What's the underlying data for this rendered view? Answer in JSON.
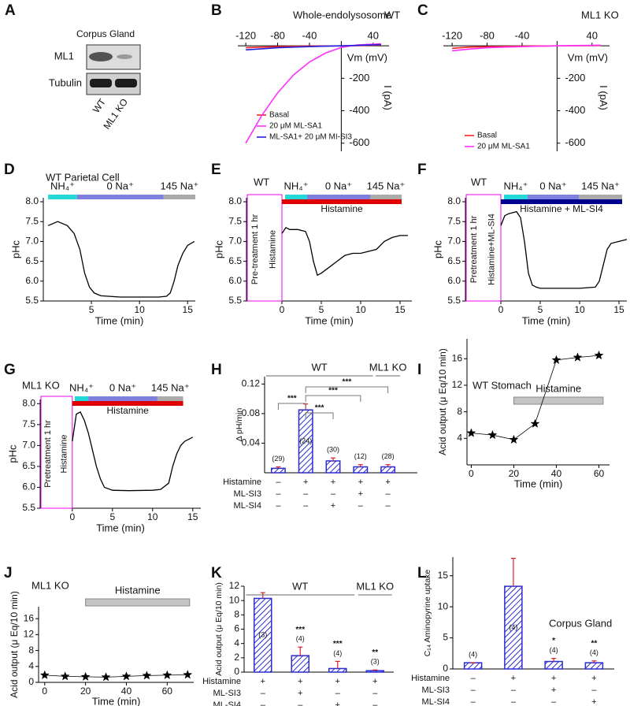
{
  "blot": {
    "panel": "A",
    "title": "Corpus Gland",
    "rows": [
      "ML1",
      "Tubulin"
    ],
    "lanes": [
      "WT",
      "ML1 KO"
    ]
  },
  "chart_data": [
    {
      "panel": "B",
      "type": "line",
      "title": "Whole-endolysosome",
      "annotation": "WT",
      "axes_at_origin": true,
      "x": [
        -120,
        -100,
        -80,
        -60,
        -40,
        -20,
        0,
        20,
        40,
        50
      ],
      "series": [
        {
          "name": "Basal",
          "color": "#ff2020",
          "values": [
            -12,
            -8,
            -5,
            -3,
            -2,
            -1,
            0,
            2,
            4,
            5
          ]
        },
        {
          "name": "20 μM ML-SA1",
          "color": "#ff30ff",
          "values": [
            -600,
            -430,
            -290,
            -180,
            -100,
            -45,
            -10,
            5,
            10,
            12
          ]
        },
        {
          "name": "ML-SA1+ 20 μM MI-SI3",
          "color": "#2020e0",
          "values": [
            -25,
            -18,
            -12,
            -8,
            -5,
            -2,
            0,
            3,
            6,
            8
          ]
        }
      ],
      "xlim": [
        -130,
        60
      ],
      "xticks": [
        -120,
        -80,
        -40,
        40
      ],
      "ylim": [
        -650,
        30
      ],
      "yticks": [
        -200,
        -400,
        -600
      ],
      "x_label": "Vm (mV)",
      "y_label": "I (pA)"
    },
    {
      "panel": "C",
      "type": "line",
      "annotation": "ML1 KO",
      "axes_at_origin": true,
      "x": [
        -120,
        -100,
        -80,
        -60,
        -40,
        -20,
        0,
        20,
        40,
        50
      ],
      "series": [
        {
          "name": "Basal",
          "color": "#ff2020",
          "values": [
            -15,
            -8,
            -5,
            -3,
            -2,
            -1,
            0,
            1,
            2,
            3
          ]
        },
        {
          "name": "20 μM ML-SA1",
          "color": "#ff30ff",
          "values": [
            -30,
            -20,
            -12,
            -8,
            -5,
            -2,
            0,
            2,
            3,
            4
          ]
        }
      ],
      "xlim": [
        -130,
        60
      ],
      "xticks": [
        -120,
        -80,
        -40,
        40
      ],
      "ylim": [
        -650,
        30
      ],
      "yticks": [
        -200,
        -400,
        -600
      ],
      "x_label": "Vm (mV)",
      "y_label": "I (pA)"
    },
    {
      "panel": "D",
      "type": "line",
      "title": "WT Parietal Cell",
      "color": "#000000",
      "x": [
        0.5,
        1.5,
        2.5,
        3.2,
        3.8,
        4.3,
        4.8,
        5.3,
        6,
        8,
        10,
        12,
        12.8,
        13.2,
        13.6,
        14,
        14.5,
        15,
        15.7
      ],
      "values": [
        7.4,
        7.5,
        7.4,
        7.2,
        6.8,
        6.2,
        5.85,
        5.7,
        5.63,
        5.6,
        5.6,
        5.6,
        5.62,
        5.7,
        6.0,
        6.4,
        6.7,
        6.9,
        7.0
      ],
      "xlim": [
        0,
        15.8
      ],
      "xticks": [
        5,
        10,
        15
      ],
      "ylim": [
        5.5,
        8.1
      ],
      "yticks": [
        5.5,
        {
          "value": 6,
          "label": "6.0"
        },
        6.5,
        {
          "value": 7,
          "label": "7.0"
        },
        7.5,
        {
          "value": 8,
          "label": "8.0"
        }
      ],
      "x_label": "Time (min)",
      "y_label": "pHc",
      "segments": [
        {
          "label": "NH₄⁺",
          "start": 0.5,
          "end": 3.5,
          "color": "#22d8d8"
        },
        {
          "label": "0 Na⁺",
          "start": 3.5,
          "end": 12.5,
          "color": "#7f7fe0"
        },
        {
          "label": "145 Na⁺",
          "start": 12.5,
          "end": 15.8,
          "color": "#aaaaaa"
        }
      ]
    },
    {
      "panel": "E",
      "type": "line",
      "title": "WT",
      "color": "#000000",
      "x": [
        0,
        0.5,
        1,
        2,
        3,
        3.5,
        4,
        4.5,
        5,
        6,
        7,
        8,
        9,
        10,
        11,
        12,
        13,
        14,
        15,
        16
      ],
      "values": [
        7.2,
        7.35,
        7.3,
        7.3,
        7.25,
        7.0,
        6.5,
        6.15,
        6.2,
        6.35,
        6.5,
        6.65,
        6.7,
        6.7,
        6.75,
        6.8,
        7.0,
        7.1,
        7.15,
        7.15
      ],
      "xlim": [
        -4.5,
        16.5
      ],
      "xticks": [
        0,
        5,
        10,
        15
      ],
      "ylim": [
        5.5,
        8.1
      ],
      "yticks": [
        5.5,
        {
          "value": 6,
          "label": "6.0"
        },
        6.5,
        {
          "value": 7,
          "label": "7.0"
        },
        7.5,
        {
          "value": 8,
          "label": "8.0"
        }
      ],
      "x_label": "Time (min)",
      "y_label": "pHc",
      "segments": [
        {
          "label": "NH₄⁺",
          "start": 0.4,
          "end": 3.2,
          "color": "#22d8d8"
        },
        {
          "label": "0 Na⁺",
          "start": 3.2,
          "end": 11.2,
          "color": "#7f7fe0"
        },
        {
          "label": "145 Na⁺",
          "start": 11.2,
          "end": 15.2,
          "color": "#aaaaaa"
        }
      ],
      "treatment": {
        "label": "Histamine",
        "start": 0,
        "end": 15.2,
        "color": "#e00000"
      },
      "pretreatment": [
        "Pre-treatment 1 hr",
        "Histamine"
      ],
      "pretreatment_color": "#ee00ee"
    },
    {
      "panel": "F",
      "type": "line",
      "title": "WT",
      "color": "#000000",
      "x": [
        0,
        0.5,
        1,
        2,
        2.5,
        3,
        3.5,
        4,
        4.5,
        5,
        7,
        10,
        12,
        12.5,
        13,
        13.5,
        14,
        15,
        16
      ],
      "values": [
        7.4,
        7.65,
        7.7,
        7.75,
        7.6,
        7.0,
        6.2,
        5.9,
        5.85,
        5.82,
        5.82,
        5.82,
        5.85,
        6.0,
        6.4,
        6.8,
        6.95,
        7.0,
        7.05
      ],
      "xlim": [
        -4.5,
        16
      ],
      "xticks": [
        0,
        5,
        10,
        15
      ],
      "ylim": [
        5.5,
        8.1
      ],
      "yticks": [
        5.5,
        {
          "value": 6,
          "label": "6.0"
        },
        6.5,
        {
          "value": 7,
          "label": "7.0"
        },
        7.5,
        {
          "value": 8,
          "label": "8.0"
        }
      ],
      "x_label": "Time (min)",
      "y_label": "pHc",
      "segments": [
        {
          "label": "NH₄⁺",
          "start": 0.4,
          "end": 3.4,
          "color": "#22d8d8"
        },
        {
          "label": "0 Na⁺",
          "start": 3.4,
          "end": 9.9,
          "color": "#7f7fe0"
        },
        {
          "label": "145 Na⁺",
          "start": 9.9,
          "end": 15.4,
          "color": "#aaaaaa"
        }
      ],
      "treatment": {
        "label": "Histamine + ML-SI4",
        "start": 0,
        "end": 15.4,
        "color": "#000090"
      },
      "pretreatment": [
        "Pretreatment 1 hr",
        "Histamine+ML-SI4"
      ],
      "pretreatment_color": "#ee00ee"
    },
    {
      "panel": "G",
      "type": "line",
      "title": "ML1 KO",
      "color": "#000000",
      "x": [
        0,
        0.5,
        1,
        1.5,
        2,
        2.5,
        3,
        3.5,
        4,
        5,
        7,
        10,
        11,
        12,
        12.5,
        13,
        13.5,
        14,
        15
      ],
      "values": [
        7.1,
        7.75,
        7.8,
        7.6,
        7.3,
        6.9,
        6.5,
        6.2,
        6.0,
        5.93,
        5.92,
        5.93,
        5.95,
        6.1,
        6.5,
        6.8,
        7.0,
        7.1,
        7.2
      ],
      "xlim": [
        -4,
        16
      ],
      "xticks": [
        0,
        5,
        10,
        15
      ],
      "ylim": [
        5.5,
        8.1
      ],
      "yticks": [
        5.5,
        {
          "value": 6,
          "label": "6.0"
        },
        6.5,
        {
          "value": 7,
          "label": "7.0"
        },
        7.5,
        {
          "value": 8,
          "label": "8.0"
        }
      ],
      "x_label": "Time (min)",
      "y_label": "pHc",
      "segments": [
        {
          "label": "NH₄⁺",
          "start": 0.3,
          "end": 2,
          "color": "#22d8d8"
        },
        {
          "label": "0 Na⁺",
          "start": 2,
          "end": 10.6,
          "color": "#7f7fe0"
        },
        {
          "label": "145 Na⁺",
          "start": 10.6,
          "end": 13.8,
          "color": "#aaaaaa"
        }
      ],
      "treatment": {
        "label": "Histamine",
        "start": 0,
        "end": 13.8,
        "color": "#e00000"
      },
      "pretreatment": [
        "Pretreatment 1 hr",
        "Histamine"
      ],
      "pretreatment_color": "#ee00ee"
    },
    {
      "panel": "H",
      "type": "bar",
      "color": "#2b2bd0",
      "error_color": "#e02020",
      "values": [
        0.006,
        0.085,
        0.016,
        0.008,
        0.008
      ],
      "errors": [
        0.002,
        0.008,
        0.004,
        0.003,
        0.003
      ],
      "n_labels": [
        "(29)",
        "(24)",
        "(30)",
        "(12)",
        "(28)"
      ],
      "ylim": [
        0,
        0.13
      ],
      "yticks": [
        0.04,
        0.08,
        0.12
      ],
      "y_label": "Δ pH/min",
      "comparison_labels": [
        "***",
        "***",
        "***",
        "***"
      ],
      "groups": [
        "WT",
        "ML1 KO"
      ],
      "treatments": [
        {
          "label": "Histamine",
          "signs": [
            "–",
            "+",
            "+",
            "+",
            "+"
          ]
        },
        {
          "label": "ML-SI3",
          "signs": [
            "–",
            "–",
            "–",
            "+",
            "–"
          ]
        },
        {
          "label": "ML-SI4",
          "signs": [
            "–",
            "–",
            "+",
            "–",
            "–"
          ]
        }
      ]
    },
    {
      "panel": "I",
      "type": "scatter",
      "title": "WT Stomach",
      "color": "#000000",
      "x": [
        0,
        10,
        20,
        30,
        40,
        50,
        60
      ],
      "values": [
        4.8,
        4.5,
        3.8,
        6.2,
        15.8,
        16.2,
        16.5
      ],
      "xlim": [
        -2,
        65
      ],
      "xticks": [
        0,
        20,
        40,
        60
      ],
      "ylim": [
        0,
        19
      ],
      "yticks": [
        4,
        8,
        12,
        16
      ],
      "x_label": "Time (min)",
      "y_label": "Acid output (μ Eq/10 min)",
      "treatment_bar": {
        "label": "Histamine",
        "start": 20,
        "end": 62,
        "color": "#c4c4c4"
      }
    },
    {
      "panel": "J",
      "type": "scatter",
      "title": "ML1 KO",
      "color": "#000000",
      "x": [
        0,
        10,
        20,
        30,
        40,
        50,
        60,
        70
      ],
      "values": [
        1.8,
        1.5,
        1.4,
        1.3,
        1.5,
        1.7,
        1.8,
        1.9
      ],
      "xlim": [
        -3,
        73
      ],
      "xticks": [
        0,
        20,
        40,
        60
      ],
      "ylim": [
        0,
        19
      ],
      "yticks": [
        0,
        4,
        8,
        12,
        16
      ],
      "x_label": "Time (min)",
      "y_label": "Acid output (μ Eq/10 min)",
      "treatment_bar": {
        "label": "Histamine",
        "start": 20,
        "end": 71,
        "color": "#c4c4c4"
      }
    },
    {
      "panel": "K",
      "type": "bar",
      "color": "#2b2bd0",
      "error_color": "#e02020",
      "values": [
        10.3,
        2.3,
        0.5,
        0.2
      ],
      "errors": [
        0.8,
        1.2,
        1.0,
        0.1
      ],
      "n_labels": [
        "(3)",
        "(4)",
        "(4)",
        "(3)"
      ],
      "significance": [
        null,
        "***",
        "***",
        "**"
      ],
      "ylim": [
        0,
        12
      ],
      "yticks": [
        0,
        2,
        4,
        6,
        8,
        10,
        12
      ],
      "y_label": "Acid output (μ Eq/10 min)",
      "groups": [
        "WT",
        "ML1 KO"
      ],
      "treatments": [
        {
          "label": "Histamine",
          "signs": [
            "+",
            "+",
            "+",
            "+"
          ]
        },
        {
          "label": "ML-SI3",
          "signs": [
            "–",
            "+",
            "–",
            "–"
          ]
        },
        {
          "label": "ML-SI4",
          "signs": [
            "–",
            "–",
            "+",
            "–"
          ]
        }
      ]
    },
    {
      "panel": "L",
      "type": "bar",
      "title": "Corpus Gland",
      "color": "#2b2bd0",
      "error_color": "#e02020",
      "values": [
        1.0,
        13.3,
        1.2,
        1.0
      ],
      "errors": [
        0,
        4.5,
        0.5,
        0.3
      ],
      "n_labels": [
        "(4)",
        "(4)",
        "(4)",
        "(4)"
      ],
      "significance": [
        null,
        null,
        "*",
        "**"
      ],
      "ylim": [
        0,
        18
      ],
      "yticks": [
        0,
        5,
        10,
        15
      ],
      "y_label": "C₁₄ Aminopyrine uptake",
      "treatments": [
        {
          "label": "Histamine",
          "signs": [
            "–",
            "+",
            "+",
            "+"
          ]
        },
        {
          "label": "ML-SI3",
          "signs": [
            "–",
            "–",
            "+",
            "–"
          ]
        },
        {
          "label": "ML-SI4",
          "signs": [
            "–",
            "–",
            "–",
            "+"
          ]
        }
      ]
    }
  ]
}
